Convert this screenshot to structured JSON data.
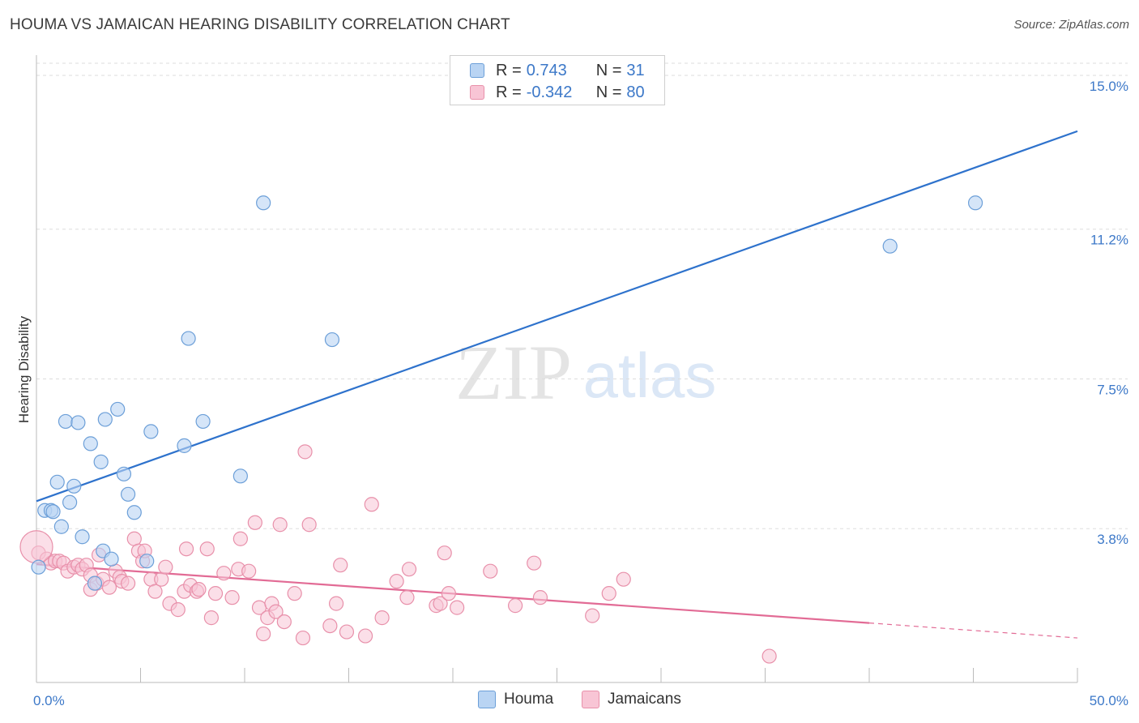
{
  "header": {
    "title": "HOUMA VS JAMAICAN HEARING DISABILITY CORRELATION CHART",
    "source": "Source: ZipAtlas.com"
  },
  "watermark": {
    "part1": "ZIP",
    "part2": "atlas"
  },
  "legend": {
    "rows": [
      {
        "r_label": "R =",
        "r_value": "0.743",
        "n_label": "N =",
        "n_value": "31"
      },
      {
        "r_label": "R =",
        "r_value": "-0.342",
        "n_label": "N =",
        "n_value": "80"
      }
    ]
  },
  "bottom_legend": {
    "houma": "Houma",
    "jamaicans": "Jamaicans"
  },
  "colors": {
    "houma_fill": "#b9d4f3",
    "houma_stroke": "#6c9fd8",
    "houma_line": "#2e72cc",
    "jam_fill": "#f8c5d5",
    "jam_stroke": "#e890aa",
    "jam_line": "#e26b95",
    "tick_label": "#3c78c8",
    "grid": "#dddddd"
  },
  "chart_data": {
    "type": "scatter",
    "title": "HOUMA VS JAMAICAN HEARING DISABILITY CORRELATION CHART",
    "xlabel": "",
    "ylabel": "Hearing Disability",
    "xlim": [
      0,
      50
    ],
    "ylim": [
      0,
      15.5
    ],
    "x_tick_labels": [
      {
        "value": 0,
        "label": "0.0%"
      },
      {
        "value": 50,
        "label": "50.0%"
      }
    ],
    "y_tick_labels": [
      {
        "value": 3.8,
        "label": "3.8%"
      },
      {
        "value": 7.5,
        "label": "7.5%"
      },
      {
        "value": 11.2,
        "label": "11.2%"
      },
      {
        "value": 15.0,
        "label": "15.0%"
      }
    ],
    "series": [
      {
        "name": "Houma",
        "r": 0.743,
        "n": 31,
        "trend": {
          "x": [
            0,
            50
          ],
          "y": [
            4.48,
            13.62
          ]
        },
        "points": [
          [
            0.1,
            2.85
          ],
          [
            0.4,
            4.25
          ],
          [
            0.7,
            4.25
          ],
          [
            0.8,
            4.22
          ],
          [
            1.0,
            4.95
          ],
          [
            1.2,
            3.85
          ],
          [
            1.4,
            6.45
          ],
          [
            1.6,
            4.45
          ],
          [
            1.8,
            4.85
          ],
          [
            2.0,
            6.42
          ],
          [
            2.2,
            3.6
          ],
          [
            2.6,
            5.9
          ],
          [
            2.8,
            2.45
          ],
          [
            3.1,
            5.45
          ],
          [
            3.2,
            3.25
          ],
          [
            3.6,
            3.05
          ],
          [
            3.3,
            6.5
          ],
          [
            3.9,
            6.75
          ],
          [
            4.2,
            5.15
          ],
          [
            4.4,
            4.65
          ],
          [
            4.7,
            4.2
          ],
          [
            5.3,
            3.0
          ],
          [
            5.5,
            6.2
          ],
          [
            7.1,
            5.85
          ],
          [
            7.3,
            8.5
          ],
          [
            8.0,
            6.45
          ],
          [
            9.8,
            5.1
          ],
          [
            10.9,
            11.85
          ],
          [
            14.2,
            8.47
          ],
          [
            41.0,
            10.78
          ],
          [
            45.1,
            11.85
          ]
        ]
      },
      {
        "name": "Jamaicans",
        "r": -0.342,
        "n": 80,
        "trend": {
          "x": [
            0,
            40
          ],
          "y": [
            2.92,
            1.47
          ]
        },
        "trend_dashed": {
          "x": [
            40,
            50
          ],
          "y": [
            1.47,
            1.1
          ]
        },
        "points": [
          [
            0.1,
            3.2
          ],
          [
            0.5,
            3.05
          ],
          [
            0.7,
            2.95
          ],
          [
            0.9,
            3.0
          ],
          [
            1.1,
            3.0
          ],
          [
            1.3,
            2.95
          ],
          [
            1.5,
            2.75
          ],
          [
            1.8,
            2.85
          ],
          [
            2.0,
            2.9
          ],
          [
            2.2,
            2.8
          ],
          [
            2.4,
            2.9
          ],
          [
            2.6,
            2.65
          ],
          [
            2.6,
            2.3
          ],
          [
            2.9,
            2.45
          ],
          [
            3.0,
            3.15
          ],
          [
            3.2,
            2.55
          ],
          [
            3.5,
            2.35
          ],
          [
            3.8,
            2.75
          ],
          [
            4.0,
            2.6
          ],
          [
            4.1,
            2.5
          ],
          [
            4.4,
            2.45
          ],
          [
            4.7,
            3.55
          ],
          [
            4.9,
            3.25
          ],
          [
            5.1,
            3.0
          ],
          [
            5.2,
            3.25
          ],
          [
            5.5,
            2.55
          ],
          [
            5.7,
            2.25
          ],
          [
            6.0,
            2.55
          ],
          [
            6.2,
            2.85
          ],
          [
            6.4,
            1.95
          ],
          [
            6.8,
            1.8
          ],
          [
            7.1,
            2.25
          ],
          [
            7.2,
            3.3
          ],
          [
            7.4,
            2.4
          ],
          [
            7.7,
            2.25
          ],
          [
            7.8,
            2.3
          ],
          [
            8.2,
            3.3
          ],
          [
            8.4,
            1.6
          ],
          [
            8.6,
            2.2
          ],
          [
            9.0,
            2.7
          ],
          [
            9.4,
            2.1
          ],
          [
            9.7,
            2.8
          ],
          [
            9.8,
            3.55
          ],
          [
            10.2,
            2.75
          ],
          [
            10.5,
            3.95
          ],
          [
            10.7,
            1.85
          ],
          [
            10.9,
            1.2
          ],
          [
            11.1,
            1.6
          ],
          [
            11.3,
            1.95
          ],
          [
            11.5,
            1.75
          ],
          [
            11.7,
            3.9
          ],
          [
            11.9,
            1.5
          ],
          [
            12.4,
            2.2
          ],
          [
            12.8,
            1.1
          ],
          [
            12.9,
            5.7
          ],
          [
            13.1,
            3.9
          ],
          [
            14.1,
            1.4
          ],
          [
            14.4,
            1.95
          ],
          [
            14.6,
            2.9
          ],
          [
            14.9,
            1.25
          ],
          [
            15.8,
            1.15
          ],
          [
            16.1,
            4.4
          ],
          [
            16.6,
            1.6
          ],
          [
            17.3,
            2.5
          ],
          [
            17.8,
            2.1
          ],
          [
            17.9,
            2.8
          ],
          [
            19.2,
            1.9
          ],
          [
            19.4,
            1.95
          ],
          [
            19.6,
            3.2
          ],
          [
            19.8,
            2.2
          ],
          [
            20.2,
            1.85
          ],
          [
            21.8,
            2.75
          ],
          [
            23.0,
            1.9
          ],
          [
            23.9,
            2.95
          ],
          [
            24.2,
            2.1
          ],
          [
            26.7,
            1.65
          ],
          [
            27.5,
            2.2
          ],
          [
            28.2,
            2.55
          ],
          [
            35.2,
            0.65
          ],
          [
            0.0,
            3.35
          ]
        ]
      }
    ]
  }
}
